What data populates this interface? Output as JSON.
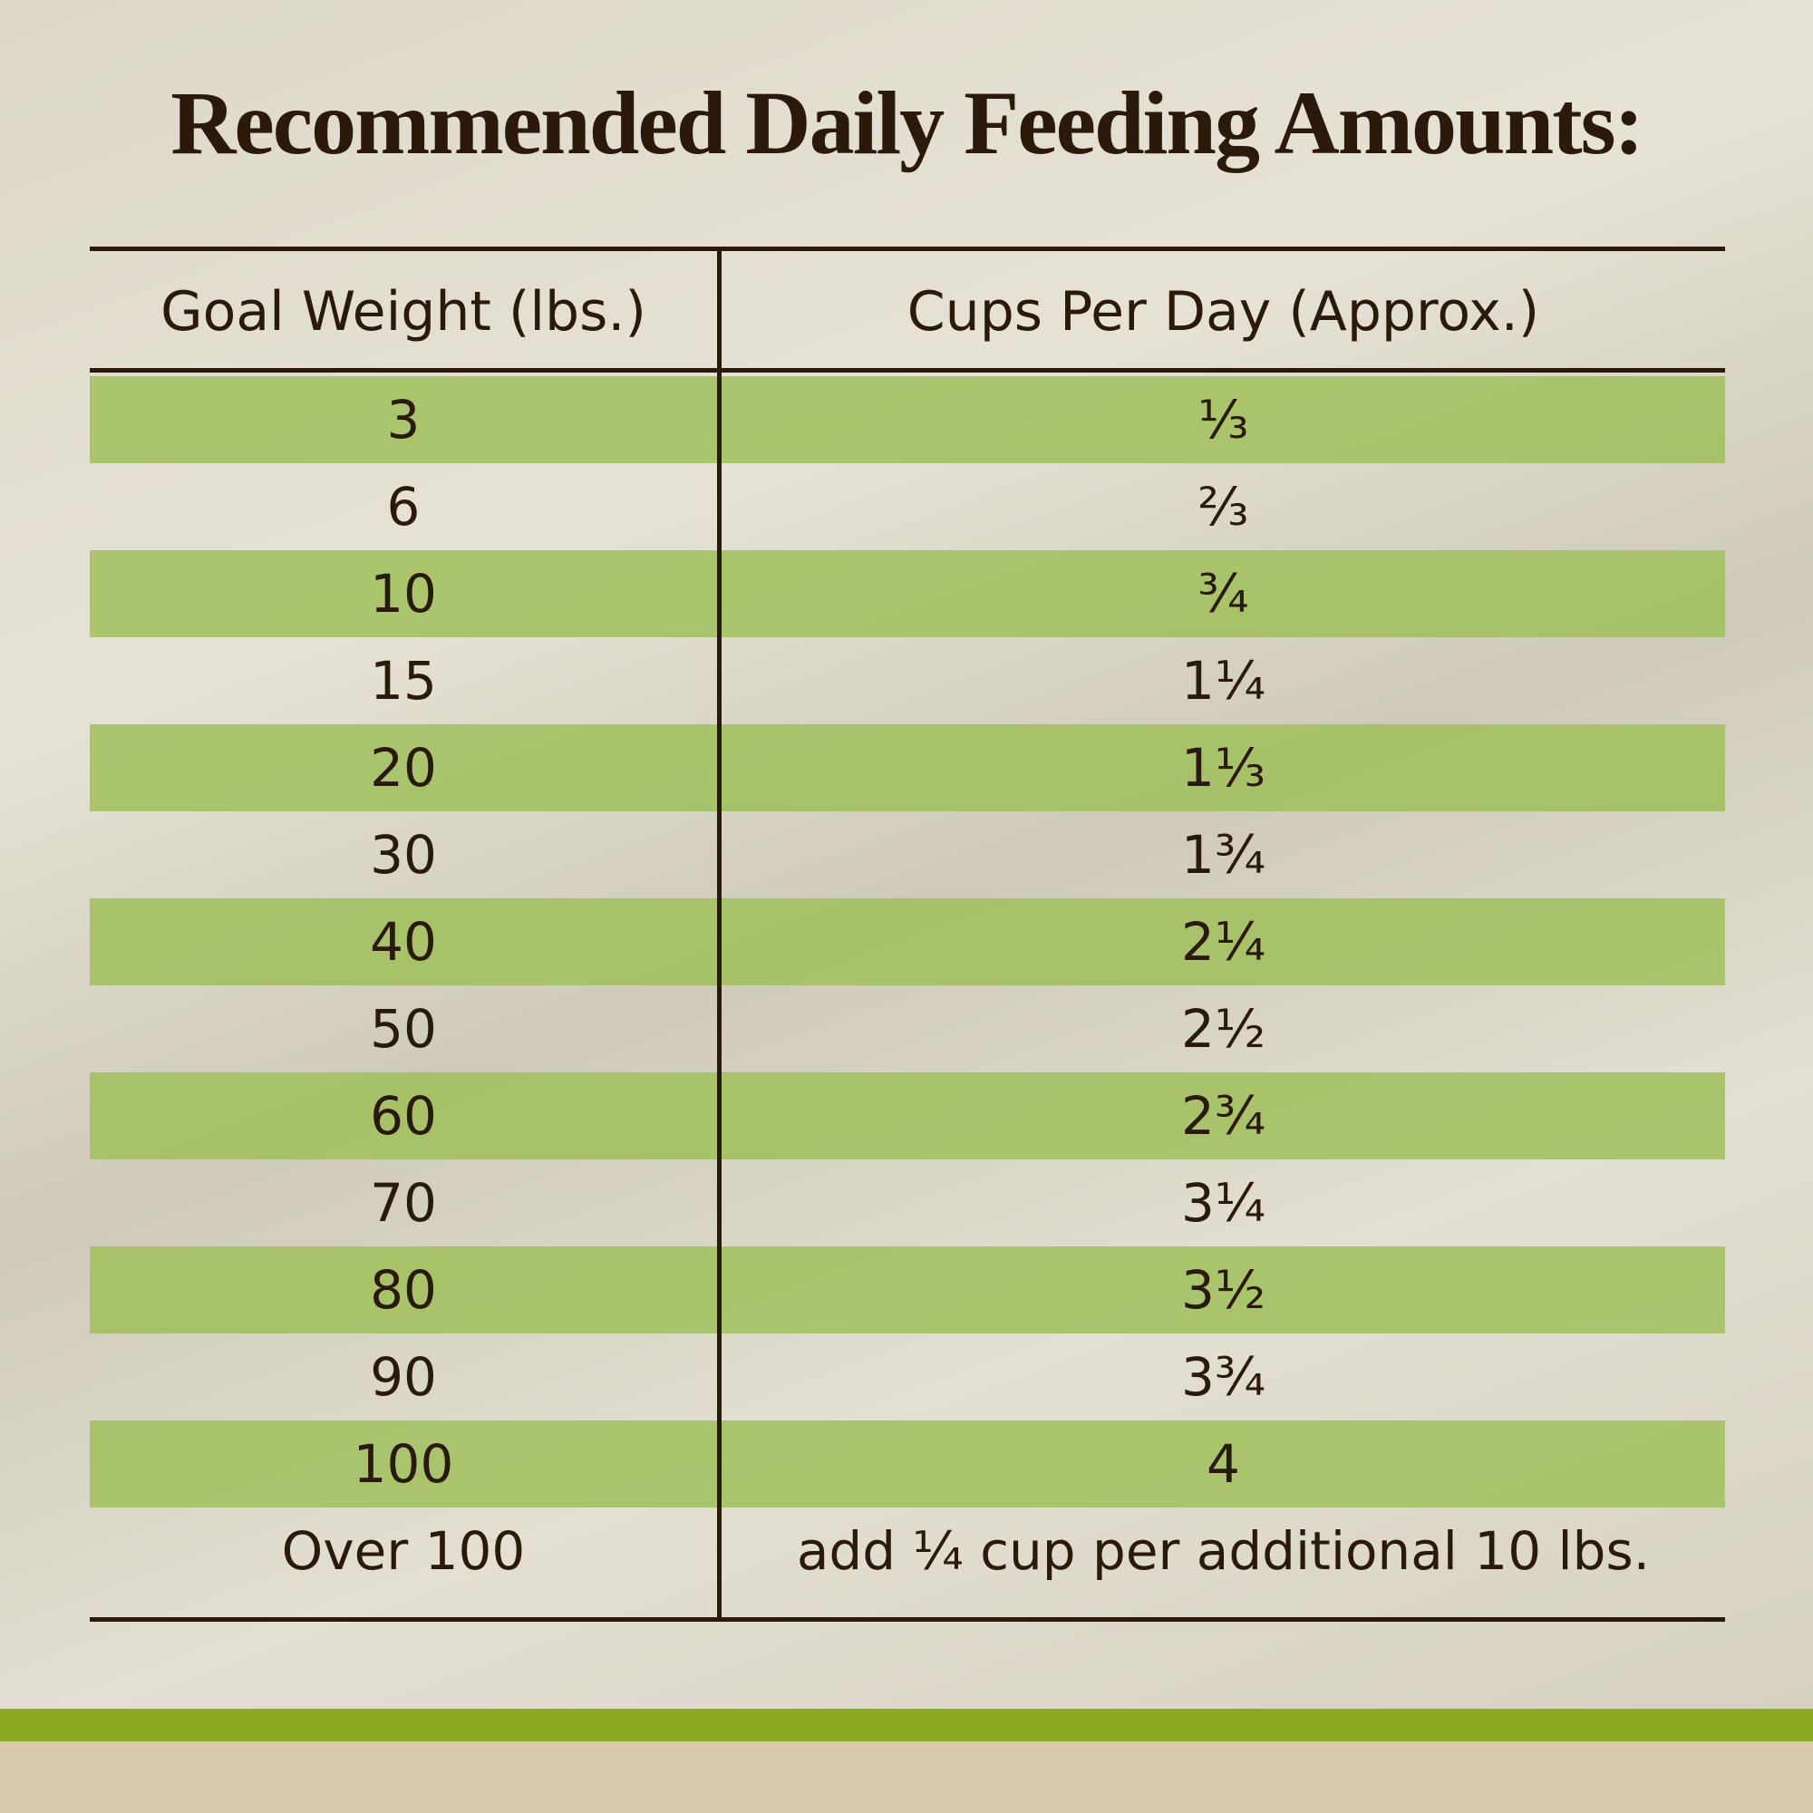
{
  "title": "Recommended Daily Feeding Amounts:",
  "table": {
    "header": [
      "Goal Weight (lbs.)",
      "Cups Per Day (Approx.)"
    ],
    "rows": [
      [
        "3",
        "⅓"
      ],
      [
        "6",
        "⅔"
      ],
      [
        "10",
        "¾"
      ],
      [
        "15",
        "1¼"
      ],
      [
        "20",
        "1⅓"
      ],
      [
        "30",
        "1¾"
      ],
      [
        "40",
        "2¼"
      ],
      [
        "50",
        "2½"
      ],
      [
        "60",
        "2¾"
      ],
      [
        "70",
        "3¼"
      ],
      [
        "80",
        "3½"
      ],
      [
        "90",
        "3¾"
      ],
      [
        "100",
        "4"
      ],
      [
        "Over 100",
        "add ¼ cup per additional 10 lbs."
      ]
    ]
  }
}
